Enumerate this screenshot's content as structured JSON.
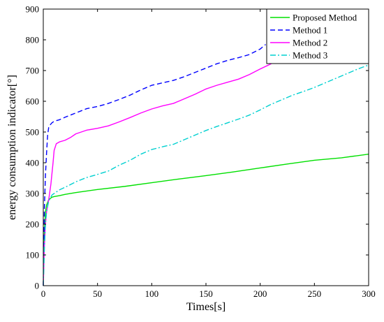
{
  "chart_data": {
    "type": "line",
    "xlabel": "Times[s]",
    "ylabel": "energy consumption indicator[°]",
    "xlim": [
      0,
      300
    ],
    "ylim": [
      0,
      900
    ],
    "xticks": [
      0,
      50,
      100,
      150,
      200,
      250,
      300
    ],
    "yticks": [
      0,
      100,
      200,
      300,
      400,
      500,
      600,
      700,
      800,
      900
    ],
    "grid": false,
    "legend_position": "top-right",
    "series": [
      {
        "name": "Proposed Method",
        "color": "#00e000",
        "dash": "solid",
        "x": [
          0,
          1,
          2,
          3,
          5,
          8,
          10,
          15,
          20,
          30,
          50,
          75,
          100,
          125,
          150,
          175,
          200,
          225,
          250,
          275,
          300
        ],
        "y": [
          0,
          180,
          240,
          262,
          280,
          288,
          290,
          293,
          297,
          303,
          313,
          323,
          335,
          347,
          358,
          370,
          383,
          396,
          408,
          416,
          428
        ]
      },
      {
        "name": "Method 1",
        "color": "#0000ff",
        "dash": "dashed",
        "x": [
          0,
          1,
          2,
          3,
          4,
          5,
          6,
          8,
          10,
          15,
          20,
          30,
          40,
          50,
          60,
          70,
          80,
          90,
          100,
          110,
          120,
          130,
          140,
          150,
          160,
          170,
          180,
          190,
          200,
          205
        ],
        "y": [
          0,
          250,
          360,
          430,
          490,
          515,
          522,
          530,
          535,
          540,
          548,
          562,
          576,
          583,
          593,
          606,
          620,
          637,
          652,
          660,
          668,
          680,
          694,
          708,
          722,
          733,
          742,
          752,
          770,
          785
        ]
      },
      {
        "name": "Method 2",
        "color": "#ff00ff",
        "dash": "solid",
        "x": [
          0,
          1,
          2,
          3,
          5,
          7,
          9,
          10,
          12,
          15,
          20,
          25,
          30,
          40,
          50,
          60,
          70,
          80,
          90,
          100,
          110,
          120,
          130,
          140,
          150,
          160,
          170,
          180,
          190,
          200,
          210,
          220
        ],
        "y": [
          0,
          130,
          200,
          240,
          280,
          330,
          400,
          440,
          462,
          468,
          473,
          482,
          494,
          506,
          512,
          520,
          533,
          547,
          562,
          575,
          585,
          593,
          608,
          623,
          640,
          652,
          662,
          672,
          687,
          705,
          722,
          742
        ]
      },
      {
        "name": "Method 3",
        "color": "#00d0d0",
        "dash": "dashdot",
        "x": [
          0,
          1,
          2,
          3,
          5,
          8,
          10,
          15,
          20,
          30,
          40,
          50,
          60,
          70,
          80,
          90,
          100,
          110,
          120,
          130,
          140,
          150,
          160,
          170,
          180,
          190,
          200,
          210,
          220,
          230,
          240,
          250,
          260,
          270,
          280,
          290,
          300
        ],
        "y": [
          0,
          120,
          200,
          240,
          275,
          295,
          300,
          312,
          320,
          338,
          352,
          362,
          373,
          392,
          408,
          428,
          443,
          452,
          460,
          475,
          490,
          505,
          518,
          530,
          542,
          555,
          572,
          590,
          605,
          620,
          632,
          645,
          660,
          675,
          690,
          705,
          718
        ]
      }
    ]
  }
}
